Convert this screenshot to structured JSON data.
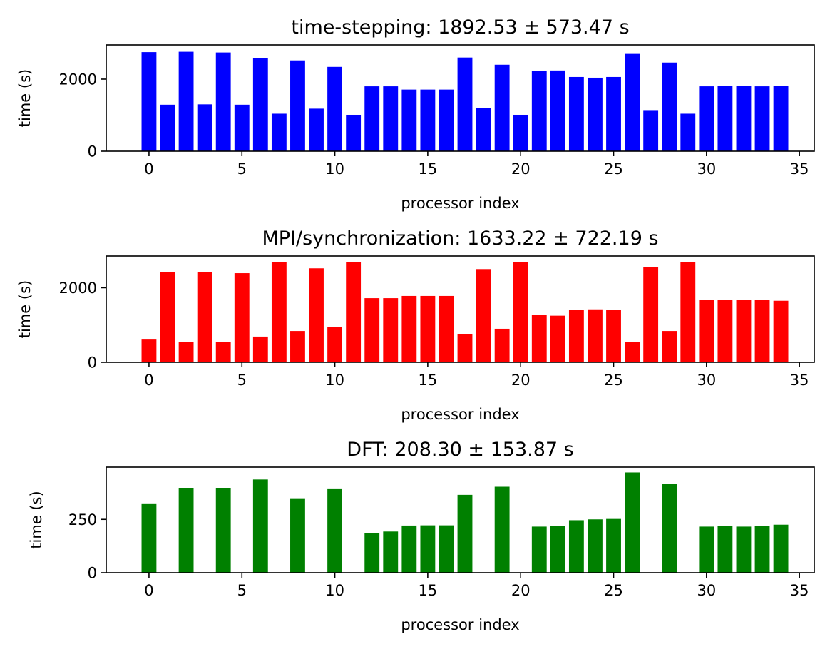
{
  "chart_data": [
    {
      "type": "bar",
      "title": "time-stepping: 1892.53 ± 573.47 s",
      "xlabel": "processor index",
      "ylabel": "time (s)",
      "color": "#0000ff",
      "xlim": [
        -2.3,
        35.8
      ],
      "ylim": [
        0,
        2950
      ],
      "xticks": [
        0,
        5,
        10,
        15,
        20,
        25,
        30,
        35
      ],
      "yticks": [
        0,
        2000
      ],
      "x": [
        0,
        1,
        2,
        3,
        4,
        5,
        6,
        7,
        8,
        9,
        10,
        11,
        12,
        13,
        14,
        15,
        16,
        17,
        18,
        19,
        20,
        21,
        22,
        23,
        24,
        25,
        26,
        27,
        28,
        29,
        30,
        31,
        32,
        33,
        34
      ],
      "values": [
        2750,
        1290,
        2760,
        1300,
        2740,
        1290,
        2580,
        1040,
        2520,
        1180,
        2340,
        1010,
        1800,
        1800,
        1710,
        1710,
        1710,
        2600,
        1190,
        2400,
        1010,
        2230,
        2240,
        2060,
        2040,
        2060,
        2700,
        1140,
        2460,
        1040,
        1800,
        1820,
        1820,
        1800,
        1820
      ]
    },
    {
      "type": "bar",
      "title": "MPI/synchronization: 1633.22 ± 722.19 s",
      "xlabel": "processor index",
      "ylabel": "time (s)",
      "color": "#ff0000",
      "xlim": [
        -2.3,
        35.8
      ],
      "ylim": [
        0,
        2850
      ],
      "xticks": [
        0,
        5,
        10,
        15,
        20,
        25,
        30,
        35
      ],
      "yticks": [
        0,
        2000
      ],
      "x": [
        0,
        1,
        2,
        3,
        4,
        5,
        6,
        7,
        8,
        9,
        10,
        11,
        12,
        13,
        14,
        15,
        16,
        17,
        18,
        19,
        20,
        21,
        22,
        23,
        24,
        25,
        26,
        27,
        28,
        29,
        30,
        31,
        32,
        33,
        34
      ],
      "values": [
        610,
        2410,
        540,
        2410,
        540,
        2390,
        690,
        2680,
        840,
        2520,
        950,
        2680,
        1720,
        1720,
        1780,
        1780,
        1780,
        750,
        2500,
        900,
        2680,
        1270,
        1250,
        1400,
        1420,
        1400,
        540,
        2560,
        840,
        2680,
        1680,
        1670,
        1670,
        1670,
        1650
      ]
    },
    {
      "type": "bar",
      "title": "DFT: 208.30 ± 153.87 s",
      "xlabel": "processor index",
      "ylabel": "time (s)",
      "color": "#008000",
      "xlim": [
        -2.3,
        35.8
      ],
      "ylim": [
        0,
        495
      ],
      "xticks": [
        0,
        5,
        10,
        15,
        20,
        25,
        30,
        35
      ],
      "yticks": [
        0,
        250
      ],
      "x": [
        0,
        1,
        2,
        3,
        4,
        5,
        6,
        7,
        8,
        9,
        10,
        11,
        12,
        13,
        14,
        15,
        16,
        17,
        18,
        19,
        20,
        21,
        22,
        23,
        24,
        25,
        26,
        27,
        28,
        29,
        30,
        31,
        32,
        33,
        34
      ],
      "values": [
        325,
        0,
        398,
        0,
        398,
        0,
        437,
        0,
        349,
        0,
        395,
        0,
        187,
        193,
        221,
        222,
        222,
        365,
        0,
        403,
        0,
        216,
        219,
        246,
        250,
        252,
        470,
        0,
        418,
        0,
        216,
        219,
        216,
        219,
        225
      ]
    }
  ]
}
